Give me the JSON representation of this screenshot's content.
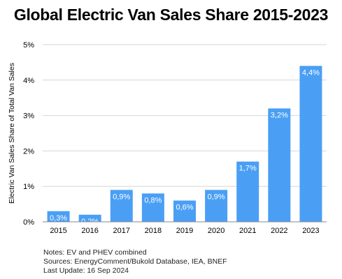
{
  "title": "Global Electric Van Sales Share 2015-2023",
  "notes": [
    "Notes: EV and PHEV combined",
    "Sources: EnergyComment/Bukold Database, IEA, BNEF",
    "Last Update: 16 Sep 2024"
  ],
  "colors": {
    "bar": "#4a9ff5",
    "grid": "#d6d6d6",
    "axis": "#888888",
    "label_text": "#ffffff"
  },
  "chart_data": {
    "type": "bar",
    "title": "Global Electric Van Sales Share 2015-2023",
    "xlabel": "",
    "ylabel": "Electric Van Sales Share of Total Van Sales",
    "categories": [
      "2015",
      "2016",
      "2017",
      "2018",
      "2019",
      "2020",
      "2021",
      "2022",
      "2023"
    ],
    "values": [
      0.3,
      0.2,
      0.9,
      0.8,
      0.6,
      0.9,
      1.7,
      3.2,
      4.4
    ],
    "data_labels": [
      "0,3%",
      "0,2%",
      "0,9%",
      "0,8%",
      "0,6%",
      "0,9%",
      "1,7%",
      "3,2%",
      "4,4%"
    ],
    "ylim": [
      0,
      5
    ],
    "yticks": [
      0,
      1,
      2,
      3,
      4,
      5
    ],
    "ytick_labels": [
      "0%",
      "1%",
      "2%",
      "3%",
      "4%",
      "5%"
    ],
    "grid": true,
    "legend": "none"
  }
}
